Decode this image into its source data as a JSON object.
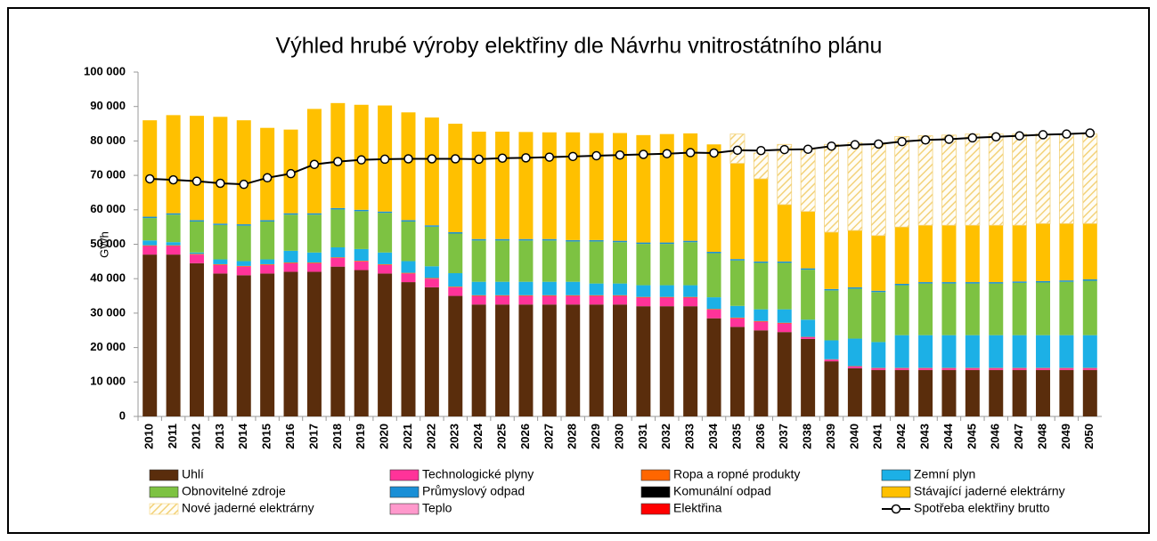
{
  "chart_data": {
    "type": "bar",
    "stacked": true,
    "title": "Výhled hrubé výroby elektřiny dle Návrhu vnitrostátního plánu",
    "ylabel": "GWh",
    "categories": [
      "2010",
      "2011",
      "2012",
      "2013",
      "2014",
      "2015",
      "2016",
      "2017",
      "2018",
      "2019",
      "2020",
      "2021",
      "2022",
      "2023",
      "2024",
      "2025",
      "2026",
      "2027",
      "2028",
      "2029",
      "2030",
      "2031",
      "2032",
      "2033",
      "2034",
      "2035",
      "2036",
      "2037",
      "2038",
      "2039",
      "2040",
      "2041",
      "2042",
      "2043",
      "2044",
      "2045",
      "2046",
      "2047",
      "2048",
      "2049",
      "2050"
    ],
    "ylim": [
      0,
      100000
    ],
    "yticks": [
      0,
      {
        "value": 10000,
        "label": "10 000"
      },
      {
        "value": 20000,
        "label": "20 000"
      },
      {
        "value": 30000,
        "label": "30 000"
      },
      {
        "value": 40000,
        "label": "40 000"
      },
      {
        "value": 50000,
        "label": "50 000"
      },
      {
        "value": 60000,
        "label": "60 000"
      },
      {
        "value": 70000,
        "label": "70 000"
      },
      {
        "value": 80000,
        "label": "80 000"
      },
      {
        "value": 90000,
        "label": "90 000"
      },
      {
        "value": 100000,
        "label": "100 000"
      }
    ],
    "grid": false,
    "series": [
      {
        "name": "Uhlí",
        "color": "#5a2d0c",
        "values": [
          47000,
          47000,
          44500,
          41500,
          41000,
          41500,
          42000,
          42000,
          43500,
          42500,
          41500,
          39000,
          37500,
          35000,
          32500,
          32500,
          32500,
          32500,
          32500,
          32500,
          32500,
          32000,
          32000,
          32000,
          28500,
          26000,
          25000,
          24500,
          22500,
          16000,
          14000,
          13500,
          13500,
          13500,
          13500,
          13500,
          13500,
          13500,
          13500,
          13500,
          13500
        ]
      },
      {
        "name": "Technologické plyny",
        "color": "#ff3399",
        "values": [
          2500,
          2500,
          2500,
          2500,
          2500,
          2500,
          2500,
          2500,
          2500,
          2500,
          2500,
          2500,
          2500,
          2500,
          2500,
          2500,
          2500,
          2500,
          2500,
          2500,
          2500,
          2500,
          2500,
          2500,
          2500,
          2500,
          2500,
          2500,
          500,
          500,
          500,
          500,
          500,
          500,
          500,
          500,
          500,
          500,
          500,
          500,
          500
        ]
      },
      {
        "name": "Ropa a ropné produkty",
        "color": "#ff6600",
        "values": [
          200,
          200,
          200,
          200,
          200,
          200,
          200,
          200,
          200,
          200,
          200,
          200,
          200,
          200,
          200,
          200,
          200,
          200,
          200,
          200,
          200,
          200,
          200,
          200,
          200,
          200,
          200,
          200,
          100,
          100,
          100,
          100,
          100,
          100,
          100,
          100,
          100,
          100,
          100,
          100,
          100
        ]
      },
      {
        "name": "Zemní plyn",
        "color": "#1cb0e6",
        "values": [
          1400,
          900,
          400,
          1400,
          1400,
          1400,
          3400,
          2900,
          2900,
          3400,
          3400,
          3400,
          3400,
          3900,
          3900,
          3900,
          3900,
          3900,
          3900,
          3400,
          3400,
          3400,
          3400,
          3400,
          3400,
          3400,
          3400,
          3900,
          5000,
          5500,
          8000,
          7500,
          9500,
          9500,
          9500,
          9500,
          9500,
          9500,
          9500,
          9500,
          9500
        ]
      },
      {
        "name": "Obnovitelné zdroje",
        "color": "#7dc242",
        "values": [
          6500,
          8000,
          9000,
          10000,
          10300,
          11000,
          10500,
          11000,
          11000,
          11000,
          11500,
          11500,
          11500,
          11500,
          12000,
          12000,
          12000,
          12000,
          11700,
          12200,
          12000,
          12000,
          12000,
          12500,
          12800,
          13200,
          13500,
          13500,
          14500,
          14500,
          14500,
          14500,
          14500,
          15000,
          15000,
          15000,
          15000,
          15200,
          15300,
          15500,
          15800
        ]
      },
      {
        "name": "Průmyslový odpad",
        "color": "#1a8fd6",
        "values": [
          400,
          400,
          400,
          400,
          400,
          400,
          400,
          400,
          400,
          400,
          400,
          400,
          400,
          400,
          400,
          400,
          400,
          400,
          400,
          400,
          400,
          400,
          400,
          400,
          400,
          400,
          400,
          400,
          400,
          400,
          400,
          400,
          400,
          400,
          400,
          400,
          400,
          400,
          400,
          400,
          400
        ]
      },
      {
        "name": "Komunální odpad",
        "color": "#000000",
        "values": [
          0,
          0,
          0,
          0,
          0,
          0,
          0,
          0,
          0,
          0,
          0,
          0,
          0,
          0,
          0,
          0,
          0,
          0,
          0,
          0,
          0,
          0,
          0,
          0,
          0,
          0,
          0,
          0,
          0,
          0,
          0,
          0,
          0,
          0,
          0,
          0,
          0,
          0,
          0,
          0,
          0
        ]
      },
      {
        "name": "Stávající jaderné elektrárny",
        "color": "#ffc000",
        "values": [
          28000,
          28500,
          30300,
          31000,
          30200,
          26800,
          24300,
          30300,
          30500,
          30500,
          30800,
          31300,
          31300,
          31500,
          31200,
          31200,
          31100,
          31000,
          31300,
          31100,
          31300,
          31200,
          31500,
          31200,
          31200,
          27800,
          24000,
          16500,
          16500,
          16500,
          16500,
          16000,
          16500,
          16500,
          16500,
          16500,
          16500,
          16300,
          16700,
          16500,
          16200
        ]
      },
      {
        "name": "Nové jaderné elektrárny",
        "color": "#f3d27a",
        "hatch": true,
        "values": [
          0,
          0,
          0,
          0,
          0,
          0,
          0,
          0,
          0,
          0,
          0,
          0,
          0,
          0,
          0,
          0,
          0,
          0,
          0,
          0,
          0,
          0,
          0,
          0,
          0,
          8500,
          7500,
          17500,
          18000,
          25500,
          25500,
          26500,
          26300,
          26000,
          26200,
          26500,
          26500,
          26500,
          26000,
          26000,
          26000
        ]
      },
      {
        "name": "Teplo",
        "color": "#ff99cc",
        "values": [
          0,
          0,
          0,
          0,
          0,
          0,
          0,
          0,
          0,
          0,
          0,
          0,
          0,
          0,
          0,
          0,
          0,
          0,
          0,
          0,
          0,
          0,
          0,
          0,
          0,
          0,
          0,
          0,
          0,
          0,
          0,
          0,
          0,
          0,
          0,
          0,
          0,
          0,
          0,
          0,
          0
        ]
      },
      {
        "name": "Elektřina",
        "color": "#ff0000",
        "values": [
          0,
          0,
          0,
          0,
          0,
          0,
          0,
          0,
          0,
          0,
          0,
          0,
          0,
          0,
          0,
          0,
          0,
          0,
          0,
          0,
          0,
          0,
          0,
          0,
          0,
          0,
          0,
          0,
          0,
          0,
          0,
          0,
          0,
          0,
          0,
          0,
          0,
          0,
          0,
          0,
          0
        ]
      }
    ],
    "line": {
      "name": "Spotřeba elektřiny brutto",
      "color": "#000000",
      "values": [
        69000,
        68700,
        68300,
        67700,
        67400,
        69300,
        70500,
        73200,
        74000,
        74500,
        74700,
        74800,
        74800,
        74800,
        74700,
        75000,
        75100,
        75300,
        75500,
        75700,
        75900,
        76100,
        76300,
        76600,
        76500,
        77300,
        77200,
        77500,
        77600,
        78500,
        78900,
        79100,
        79800,
        80300,
        80500,
        80900,
        81200,
        81500,
        81800,
        82000,
        82300
      ]
    }
  }
}
